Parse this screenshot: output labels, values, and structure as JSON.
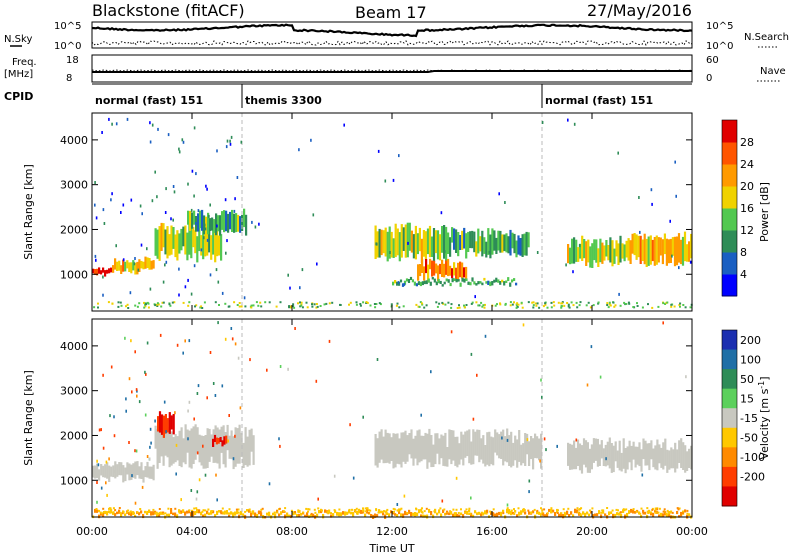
{
  "header": {
    "site": "Blackstone (fitACF)",
    "beam": "Beam 17",
    "date": "27/May/2016"
  },
  "noise_panel": {
    "left_label": "N.Sky",
    "right_label": "N.Search",
    "left_ticks": [
      "10^5",
      "10^0"
    ],
    "right_ticks": [
      "10^5",
      "10^0"
    ]
  },
  "freq_panel": {
    "left_label_1": "Freq.",
    "left_label_2": "[MHz]",
    "right_label": "Nave",
    "left_ticks": [
      "18",
      "8"
    ],
    "right_ticks": [
      "60",
      "0"
    ]
  },
  "cpid_panel": {
    "label": "CPID",
    "modes": [
      {
        "name": "normal (fast) 151",
        "start_hour": 0,
        "end_hour": 6
      },
      {
        "name": "themis 3300",
        "start_hour": 6,
        "end_hour": 18
      },
      {
        "name": "normal (fast) 151",
        "start_hour": 18,
        "end_hour": 24
      }
    ]
  },
  "power_colorbar": {
    "label": "Power [dB]",
    "ticks": [
      "28",
      "24",
      "20",
      "16",
      "12",
      "8",
      "4"
    ],
    "colors": [
      "#0000ff",
      "#1a5fc2",
      "#2e8c57",
      "#52c850",
      "#f0d200",
      "#ff9a00",
      "#ff5500",
      "#e00000"
    ]
  },
  "velocity_colorbar": {
    "label": "Velocity [m s",
    "label_exp": "-1",
    "label_end": "]",
    "ticks": [
      "200",
      "100",
      "50",
      "15",
      "-15",
      "-50",
      "-100",
      "-200"
    ],
    "colors": [
      "#1b2fb0",
      "#1f6fa6",
      "#2e8c57",
      "#5cd05c",
      "#c8c8c0",
      "#ffc800",
      "#ff8a00",
      "#ff3d00",
      "#e00000"
    ]
  },
  "chart_data": [
    {
      "type": "heatmap",
      "title": "",
      "xlabel": "Time UT",
      "ylabel": "Slant Range [km]",
      "xlim": [
        0,
        24
      ],
      "ylim": [
        180,
        4600
      ],
      "x_ticks": [
        "00:00",
        "04:00",
        "08:00",
        "12:00",
        "16:00",
        "20:00",
        "00:00"
      ],
      "y_ticks": [
        1000,
        2000,
        3000,
        4000
      ],
      "colorbar": "Power [dB]",
      "echo_bands": [
        {
          "t_start": 0.0,
          "t_end": 0.8,
          "range_start": 1000,
          "range_end": 1150,
          "value_db": 28
        },
        {
          "t_start": 0.8,
          "t_end": 2.5,
          "range_start": 1050,
          "range_end": 1350,
          "value_db": 20
        },
        {
          "t_start": 2.5,
          "t_end": 5.2,
          "range_start": 1300,
          "range_end": 2100,
          "value_db": 16
        },
        {
          "t_start": 3.8,
          "t_end": 6.2,
          "range_start": 1900,
          "range_end": 2400,
          "value_db": 12
        },
        {
          "t_start": 11.3,
          "t_end": 14.2,
          "range_start": 1300,
          "range_end": 2100,
          "value_db": 16
        },
        {
          "t_start": 13.0,
          "t_end": 15.0,
          "range_start": 900,
          "range_end": 1300,
          "value_db": 24
        },
        {
          "t_start": 14.2,
          "t_end": 17.5,
          "range_start": 1400,
          "range_end": 2000,
          "value_db": 12
        },
        {
          "t_start": 12.0,
          "t_end": 17.0,
          "range_start": 780,
          "range_end": 880,
          "value_db": 12
        },
        {
          "t_start": 19.0,
          "t_end": 21.5,
          "range_start": 1200,
          "range_end": 1800,
          "value_db": 16
        },
        {
          "t_start": 21.5,
          "t_end": 24.0,
          "range_start": 1200,
          "range_end": 1900,
          "value_db": 20
        }
      ]
    },
    {
      "type": "heatmap",
      "title": "",
      "xlabel": "Time UT",
      "ylabel": "Slant Range [km]",
      "xlim": [
        0,
        24
      ],
      "ylim": [
        180,
        4600
      ],
      "x_ticks": [
        "00:00",
        "04:00",
        "08:00",
        "12:00",
        "16:00",
        "20:00",
        "00:00"
      ],
      "y_ticks": [
        1000,
        2000,
        3000,
        4000
      ],
      "colorbar": "Velocity [m s-1]",
      "echo_bands": [
        {
          "t_start": 0.0,
          "t_end": 2.5,
          "range_start": 1000,
          "range_end": 1400,
          "value_ms": 0
        },
        {
          "t_start": 2.5,
          "t_end": 6.5,
          "range_start": 1300,
          "range_end": 2200,
          "value_ms": 0
        },
        {
          "t_start": 2.6,
          "t_end": 3.3,
          "range_start": 2000,
          "range_end": 2500,
          "value_ms": -200
        },
        {
          "t_start": 4.8,
          "t_end": 5.4,
          "range_start": 1800,
          "range_end": 2000,
          "value_ms": -200
        },
        {
          "t_start": 11.3,
          "t_end": 18.0,
          "range_start": 1300,
          "range_end": 2100,
          "value_ms": 0
        },
        {
          "t_start": 19.0,
          "t_end": 24.0,
          "range_start": 1200,
          "range_end": 1900,
          "value_ms": 0
        },
        {
          "t_start": 0.0,
          "t_end": 24.0,
          "range_start": 200,
          "range_end": 300,
          "value_ms": -50
        }
      ]
    }
  ]
}
